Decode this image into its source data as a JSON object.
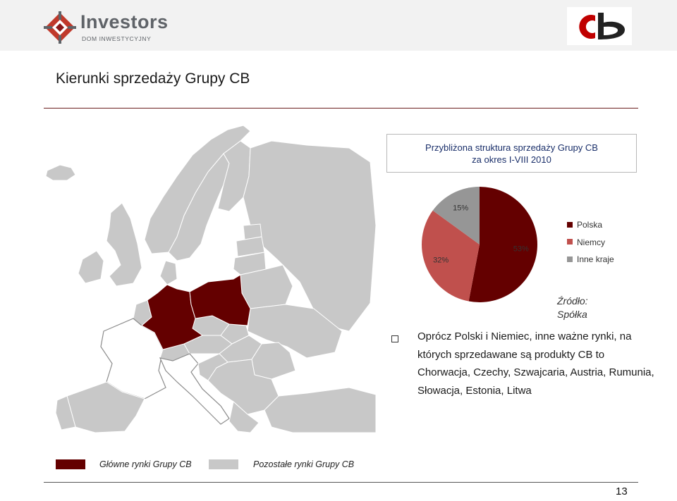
{
  "header": {
    "logo_name": "Investors",
    "logo_sub": "DOM INWESTYCYJNY"
  },
  "page_title": "Kierunki sprzedaży Grupy CB",
  "chart_title_line1": "Przybliżona struktura sprzedaży Grupy CB",
  "chart_title_line2": "za okres I-VIII 2010",
  "chart_data": {
    "type": "pie",
    "title": "Przybliżona struktura sprzedaży Grupy CB za okres I-VIII 2010",
    "categories": [
      "Polska",
      "Niemcy",
      "Inne kraje"
    ],
    "values": [
      53,
      32,
      15
    ],
    "value_labels": [
      "53%",
      "32%",
      "15%"
    ],
    "colors": [
      "#640000",
      "#c0504d",
      "#969696"
    ],
    "legend_position": "right"
  },
  "source_line1": "Źródło:",
  "source_line2": "Spółka",
  "bullet_text": "Oprócz Polski i Niemiec, inne ważne rynki, na których sprzedawane są produkty CB to Chorwacja, Czechy, Szwajcaria, Austria, Rumunia, Słowacja, Estonia, Litwa",
  "map_legend": {
    "main": {
      "label": "Główne rynki Grupy CB",
      "color": "#640000"
    },
    "other": {
      "label": "Pozostałe rynki Grupy CB",
      "color": "#c8c8c8"
    }
  },
  "page_number": "13"
}
